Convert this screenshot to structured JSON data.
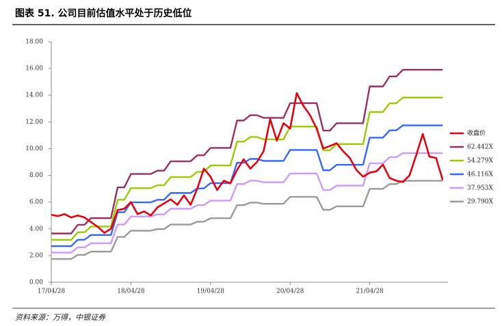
{
  "chart_data": {
    "type": "line",
    "title": "图表 51. 公司目前估值水平处于历史低位",
    "source": "资料来源：万得，中银证券",
    "categories": [
      "17/04/28",
      null,
      null,
      null,
      null,
      null,
      null,
      null,
      null,
      null,
      null,
      null,
      "18/04/28",
      null,
      null,
      null,
      null,
      null,
      null,
      null,
      null,
      null,
      null,
      null,
      "19/04/28",
      null,
      null,
      null,
      null,
      null,
      null,
      null,
      null,
      null,
      null,
      null,
      "20/04/28",
      null,
      null,
      null,
      null,
      null,
      null,
      null,
      null,
      null,
      null,
      null,
      "21/04/28",
      null,
      null,
      null,
      null,
      null,
      null,
      null,
      null,
      null,
      null,
      null
    ],
    "ylim": [
      0,
      18
    ],
    "yticks": [
      {
        "value": 0,
        "label": "0.00"
      },
      {
        "value": 2,
        "label": "2.00"
      },
      {
        "value": 4,
        "label": "4.00"
      },
      {
        "value": 6,
        "label": "6.00"
      },
      {
        "value": 8,
        "label": "8.00"
      },
      {
        "value": 10,
        "label": "10.00"
      },
      {
        "value": 12,
        "label": "12.00"
      },
      {
        "value": 14,
        "label": "14.00"
      },
      {
        "value": 16,
        "label": "16.00"
      },
      {
        "value": 18,
        "label": "18.00"
      }
    ],
    "grid": false,
    "legend": "right",
    "series": [
      {
        "name": "收盘价",
        "color": "#e8000b",
        "values": [
          5.05,
          4.95,
          5.1,
          4.85,
          5.0,
          4.85,
          4.5,
          4.15,
          3.7,
          4.0,
          5.4,
          5.5,
          6.0,
          5.1,
          5.3,
          5.0,
          5.6,
          5.9,
          6.2,
          5.8,
          6.5,
          5.8,
          7.0,
          8.5,
          7.9,
          6.9,
          7.6,
          7.4,
          8.4,
          9.2,
          8.5,
          9.0,
          9.8,
          12.2,
          10.6,
          11.9,
          11.5,
          14.15,
          13.2,
          12.5,
          11.5,
          10.0,
          10.2,
          10.4,
          9.8,
          9.3,
          8.4,
          7.9,
          8.2,
          8.3,
          8.8,
          7.8,
          7.6,
          7.5,
          8.0,
          9.5,
          11.1,
          9.4,
          9.3,
          7.65
        ]
      },
      {
        "name": "62.442X",
        "color": "#9b2d5f",
        "values": [
          3.65,
          3.65,
          3.65,
          3.65,
          4.3,
          4.3,
          4.8,
          4.8,
          4.8,
          4.8,
          7.1,
          7.1,
          8.1,
          8.1,
          8.1,
          8.1,
          8.35,
          8.35,
          9.05,
          9.05,
          9.05,
          9.05,
          9.5,
          9.5,
          10.05,
          10.05,
          10.05,
          10.05,
          12.1,
          12.1,
          12.5,
          12.5,
          12.3,
          12.3,
          12.3,
          12.3,
          13.4,
          13.4,
          13.4,
          13.4,
          13.4,
          11.35,
          11.35,
          11.9,
          11.9,
          11.9,
          11.9,
          11.9,
          14.65,
          14.65,
          14.65,
          15.4,
          15.4,
          15.9,
          15.9,
          15.9,
          15.9,
          15.9,
          15.9,
          15.9
        ]
      },
      {
        "name": "54.279X",
        "color": "#99cc00",
        "values": [
          3.17,
          3.17,
          3.17,
          3.17,
          3.74,
          3.74,
          4.17,
          4.17,
          4.17,
          4.17,
          6.17,
          6.17,
          7.04,
          7.04,
          7.04,
          7.04,
          7.26,
          7.26,
          7.87,
          7.87,
          7.87,
          7.87,
          8.26,
          8.26,
          8.74,
          8.74,
          8.74,
          8.74,
          10.52,
          10.52,
          10.87,
          10.87,
          10.69,
          10.69,
          10.69,
          10.69,
          11.65,
          11.65,
          11.65,
          11.65,
          11.65,
          9.87,
          9.87,
          10.34,
          10.34,
          10.34,
          10.34,
          10.34,
          12.74,
          12.74,
          12.74,
          13.39,
          13.39,
          13.82,
          13.82,
          13.82,
          13.82,
          13.82,
          13.82,
          13.82
        ]
      },
      {
        "name": "46.116X",
        "color": "#3366ff",
        "values": [
          2.7,
          2.7,
          2.7,
          2.7,
          3.18,
          3.18,
          3.54,
          3.54,
          3.54,
          3.54,
          5.24,
          5.24,
          5.98,
          5.98,
          5.98,
          5.98,
          6.17,
          6.17,
          6.68,
          6.68,
          6.68,
          6.68,
          7.02,
          7.02,
          7.42,
          7.42,
          7.42,
          7.42,
          8.94,
          8.94,
          9.23,
          9.23,
          9.08,
          9.08,
          9.08,
          9.08,
          9.9,
          9.9,
          9.9,
          9.9,
          9.9,
          8.38,
          8.38,
          8.79,
          8.79,
          8.79,
          8.79,
          8.79,
          10.82,
          10.82,
          10.82,
          11.37,
          11.37,
          11.74,
          11.74,
          11.74,
          11.74,
          11.74,
          11.74,
          11.74
        ]
      },
      {
        "name": "37.953X",
        "color": "#cc99ff",
        "values": [
          2.22,
          2.22,
          2.22,
          2.22,
          2.61,
          2.61,
          2.92,
          2.92,
          2.92,
          2.92,
          4.32,
          4.32,
          4.92,
          4.92,
          4.92,
          4.92,
          5.08,
          5.08,
          5.5,
          5.5,
          5.5,
          5.5,
          5.77,
          5.77,
          6.11,
          6.11,
          6.11,
          6.11,
          7.35,
          7.35,
          7.6,
          7.6,
          7.48,
          7.48,
          7.48,
          7.48,
          8.14,
          8.14,
          8.14,
          8.14,
          8.14,
          6.9,
          6.9,
          7.23,
          7.23,
          7.23,
          7.23,
          7.23,
          8.9,
          8.9,
          8.9,
          9.36,
          9.36,
          9.66,
          9.66,
          9.66,
          9.66,
          9.66,
          9.66,
          9.66
        ]
      },
      {
        "name": "29.790X",
        "color": "#999999",
        "values": [
          1.74,
          1.74,
          1.74,
          1.74,
          2.05,
          2.05,
          2.29,
          2.29,
          2.29,
          2.29,
          3.39,
          3.39,
          3.86,
          3.86,
          3.86,
          3.86,
          3.98,
          3.98,
          4.32,
          4.32,
          4.32,
          4.32,
          4.53,
          4.53,
          4.79,
          4.79,
          4.79,
          4.79,
          5.77,
          5.77,
          5.96,
          5.96,
          5.87,
          5.87,
          5.87,
          5.87,
          6.39,
          6.39,
          6.39,
          6.39,
          6.39,
          5.42,
          5.42,
          5.68,
          5.68,
          5.68,
          5.68,
          5.68,
          6.99,
          6.99,
          6.99,
          7.35,
          7.35,
          7.59,
          7.59,
          7.59,
          7.59,
          7.59,
          7.59,
          7.59
        ]
      }
    ]
  }
}
